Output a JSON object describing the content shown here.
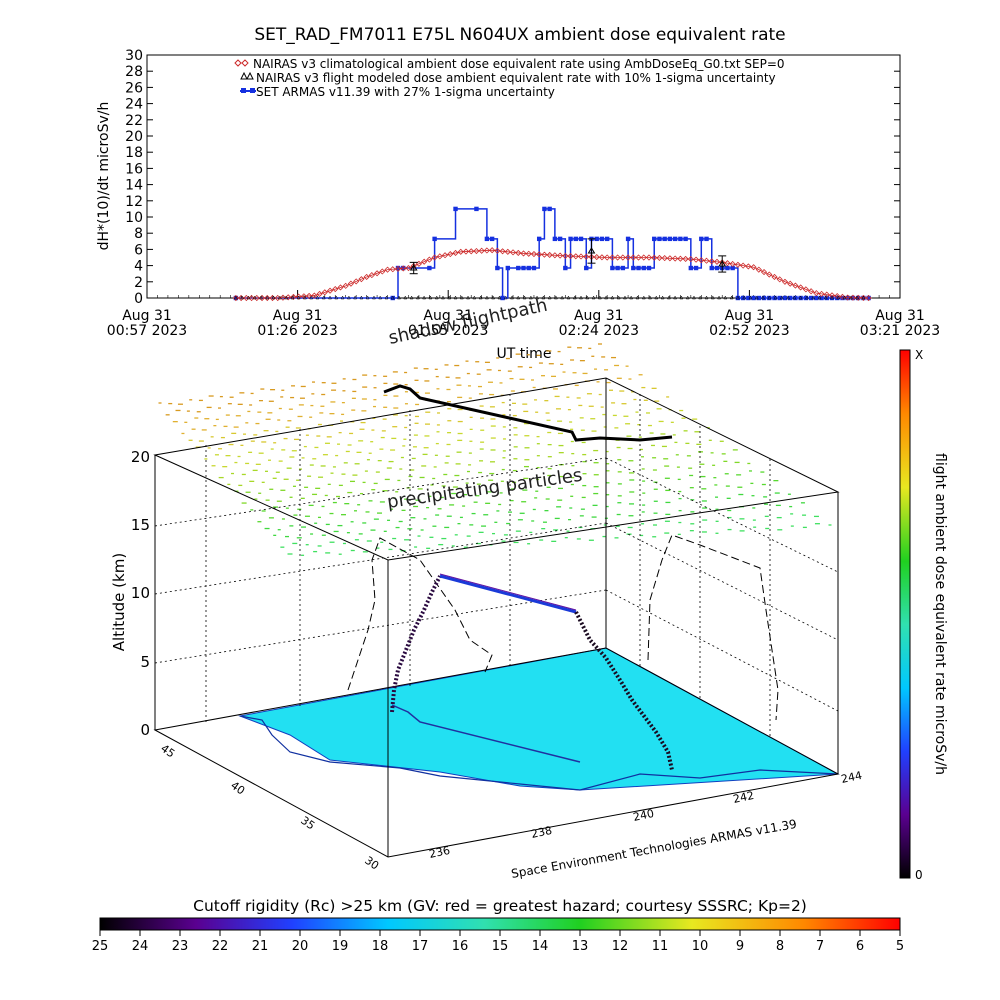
{
  "title": "SET_RAD_FM7011  E75L N604UX ambient dose equivalent rate",
  "top_panel": {
    "ylabel": "dH*(10)/dt microSv/h",
    "xlabel": "UT time",
    "y_ticks": [
      0,
      2,
      4,
      6,
      8,
      10,
      12,
      14,
      16,
      18,
      20,
      22,
      24,
      26,
      28,
      30
    ],
    "x_ticks": [
      {
        "line1": "Aug 31",
        "line2": "00:57 2023"
      },
      {
        "line1": "Aug 31",
        "line2": "01:26 2023"
      },
      {
        "line1": "Aug 31",
        "line2": "01:55 2023"
      },
      {
        "line1": "Aug 31",
        "line2": "02:24 2023"
      },
      {
        "line1": "Aug 31",
        "line2": "02:52 2023"
      },
      {
        "line1": "Aug 31",
        "line2": "03:21 2023"
      }
    ],
    "legend": [
      {
        "label": "NAIRAS v3 climatological ambient dose equivalent rate using AmbDoseEq_G0.txt SEP=0",
        "color": "#cc2a2a",
        "symbol": "diamond"
      },
      {
        "label": "NAIRAS v3 flight modeled dose ambient equivalent rate with 10% 1-sigma uncertainty",
        "color": "#000000",
        "symbol": "triangle"
      },
      {
        "label": "SET ARMAS v11.39 with 27% 1-sigma uncertainty",
        "color": "#1530e0",
        "symbol": "square"
      }
    ]
  },
  "chart_data": [
    {
      "type": "line",
      "title": "SET_RAD_FM7011  E75L N604UX ambient dose equivalent rate",
      "xlabel": "UT time",
      "ylabel": "dH*(10)/dt microSv/h",
      "x_unit": "minutes after Aug 31 2023 00:57 UT",
      "xlim": [
        0,
        144
      ],
      "ylim": [
        0,
        30
      ],
      "series": [
        {
          "name": "SET ARMAS v11.39 with 27% 1-sigma uncertainty",
          "x": [
            17,
            47,
            48,
            49,
            54,
            55,
            59,
            63,
            65,
            66,
            67,
            68,
            69,
            71,
            72,
            73,
            74,
            75,
            76,
            77,
            78,
            79,
            80,
            81,
            82,
            83,
            84,
            85,
            86,
            87,
            88,
            89,
            90,
            91,
            92,
            93,
            94,
            95,
            96,
            97,
            98,
            99,
            100,
            101,
            102,
            103,
            104,
            105,
            106,
            107,
            108,
            109,
            110,
            111,
            112,
            113,
            114,
            115,
            116,
            117,
            118,
            119,
            120,
            121,
            122,
            123,
            124,
            125,
            126,
            127,
            128,
            129,
            130,
            131,
            132,
            133,
            134,
            135,
            136,
            137,
            138
          ],
          "y": [
            0,
            0,
            3.7,
            3.7,
            3.7,
            7.3,
            11,
            11,
            7.3,
            7.3,
            3.7,
            0,
            3.7,
            3.7,
            3.7,
            3.7,
            3.7,
            7.3,
            11,
            11,
            7.3,
            7.3,
            3.7,
            7.3,
            7.3,
            7.3,
            3.7,
            7.3,
            7.3,
            7.3,
            7.3,
            3.7,
            3.7,
            3.7,
            7.3,
            3.7,
            3.7,
            3.7,
            3.7,
            7.3,
            7.3,
            7.3,
            7.3,
            7.3,
            7.3,
            7.3,
            3.7,
            3.7,
            7.3,
            7.3,
            3.7,
            3.7,
            3.7,
            3.7,
            3.7,
            0,
            0,
            0,
            0,
            0,
            0,
            0,
            0,
            0,
            0,
            0,
            0,
            0,
            0,
            0,
            0,
            0,
            0,
            0,
            0,
            0,
            0,
            0,
            0,
            0,
            0
          ]
        },
        {
          "name": "NAIRAS v3 climatological ambient dose equivalent rate using AmbDoseEq_G0.txt SEP=0",
          "x": [
            17,
            25,
            32,
            38,
            42,
            46,
            50,
            55,
            60,
            66,
            72,
            80,
            88,
            96,
            104,
            110,
            116,
            122,
            128,
            134,
            138
          ],
          "y": [
            0,
            0,
            0.3,
            1.5,
            2.6,
            3.5,
            3.7,
            5,
            5.7,
            5.9,
            5.5,
            5.2,
            5.0,
            5.0,
            4.8,
            4.4,
            3.8,
            2.0,
            0.6,
            0.05,
            0
          ]
        },
        {
          "name": "NAIRAS v3 flight modeled dose ambient equivalent rate with 10% 1-sigma uncertainty",
          "x": [
            51,
            85,
            110
          ],
          "y": [
            3.7,
            5.8,
            4.2
          ],
          "error": [
            0.7,
            1.5,
            1.0
          ]
        }
      ]
    },
    {
      "type": "scatter",
      "title": "Space Environment Technologies ARMAS v11.39",
      "zlabel": "Altitude (km)",
      "z_ticks": [
        0,
        5,
        10,
        15,
        20
      ],
      "x_ticks": [
        "236",
        "238",
        "240",
        "242",
        "244"
      ],
      "y_ticks": [
        "30",
        "35",
        "40",
        "45"
      ],
      "annotations": [
        "shadow flightpath",
        "precipitating particles"
      ],
      "colorbar": {
        "label": "flight ambient dose equivalent rate microSv/h",
        "min_label": "0",
        "max_label": "X"
      }
    }
  ],
  "bottom_bar": {
    "title": "Cutoff rigidity (Rc) >25 km (GV: red = greatest hazard; courtesy SSSRC; Kp=2)",
    "ticks": [
      "25",
      "24",
      "23",
      "22",
      "21",
      "20",
      "19",
      "18",
      "17",
      "16",
      "15",
      "14",
      "13",
      "12",
      "11",
      "10",
      "9",
      "8",
      "7",
      "6",
      "5"
    ]
  },
  "credit": "Space Environment Technologies ARMAS v11.39"
}
